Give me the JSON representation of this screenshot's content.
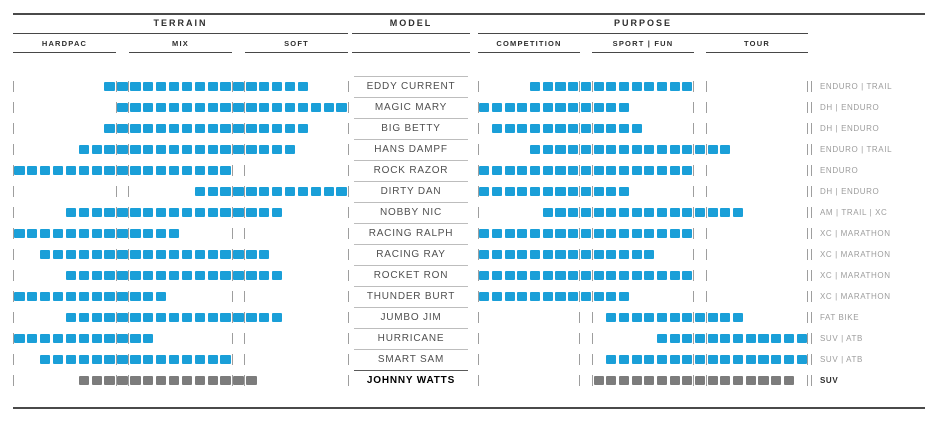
{
  "header": {
    "terrain": {
      "label": "TERRAIN",
      "sections": [
        "HARDPAC",
        "MIX",
        "SOFT"
      ]
    },
    "model": {
      "label": "MODEL"
    },
    "purpose": {
      "label": "PURPOSE",
      "sections": [
        "COMPETITION",
        "SPORT | FUN",
        "TOUR"
      ]
    }
  },
  "colors": {
    "bar_blue": "#1a9fd8",
    "bar_gray": "#7c7c7c",
    "tick_gray": "#9e9e9e"
  },
  "grid": {
    "slots_per_section": 8,
    "cell_note": "terrain_cells / purpose_cells are inclusive [start,end] on a 26-cell track: cells 0-7 section1, 8 gap, 9-16 section2, 17 gap, 18-25 section3"
  },
  "rows": [
    {
      "model": "EDDY CURRENT",
      "category": "ENDURO | TRAIL",
      "terrain_cells": [
        7,
        22
      ],
      "purpose_cells": [
        4,
        16
      ],
      "highlight": false
    },
    {
      "model": "MAGIC MARY",
      "category": "DH | ENDURO",
      "terrain_cells": [
        8,
        25
      ],
      "purpose_cells": [
        0,
        11
      ],
      "highlight": false
    },
    {
      "model": "BIG BETTY",
      "category": "DH | ENDURO",
      "terrain_cells": [
        7,
        22
      ],
      "purpose_cells": [
        1,
        12
      ],
      "highlight": false
    },
    {
      "model": "HANS DAMPF",
      "category": "ENDURO | TRAIL",
      "terrain_cells": [
        5,
        21
      ],
      "purpose_cells": [
        4,
        19
      ],
      "highlight": false
    },
    {
      "model": "ROCK RAZOR",
      "category": "ENDURO",
      "terrain_cells": [
        0,
        16
      ],
      "purpose_cells": [
        0,
        16
      ],
      "highlight": false
    },
    {
      "model": "DIRTY DAN",
      "category": "DH | ENDURO",
      "terrain_cells": [
        14,
        25
      ],
      "purpose_cells": [
        0,
        11
      ],
      "highlight": false
    },
    {
      "model": "NOBBY NIC",
      "category": "AM | TRAIL | XC",
      "terrain_cells": [
        4,
        20
      ],
      "purpose_cells": [
        5,
        20
      ],
      "highlight": false
    },
    {
      "model": "RACING RALPH",
      "category": "XC | MARATHON",
      "terrain_cells": [
        0,
        12
      ],
      "purpose_cells": [
        0,
        16
      ],
      "highlight": false
    },
    {
      "model": "RACING RAY",
      "category": "XC | MARATHON",
      "terrain_cells": [
        2,
        19
      ],
      "purpose_cells": [
        0,
        13
      ],
      "highlight": false
    },
    {
      "model": "ROCKET RON",
      "category": "XC | MARATHON",
      "terrain_cells": [
        4,
        20
      ],
      "purpose_cells": [
        0,
        16
      ],
      "highlight": false
    },
    {
      "model": "THUNDER BURT",
      "category": "XC | MARATHON",
      "terrain_cells": [
        0,
        11
      ],
      "purpose_cells": [
        0,
        11
      ],
      "highlight": false
    },
    {
      "model": "JUMBO JIM",
      "category": "FAT BIKE",
      "terrain_cells": [
        4,
        20
      ],
      "purpose_cells": [
        10,
        20
      ],
      "highlight": false
    },
    {
      "model": "HURRICANE",
      "category": "SUV | ATB",
      "terrain_cells": [
        0,
        10
      ],
      "purpose_cells": [
        14,
        25
      ],
      "highlight": false
    },
    {
      "model": "SMART SAM",
      "category": "SUV | ATB",
      "terrain_cells": [
        2,
        16
      ],
      "purpose_cells": [
        10,
        25
      ],
      "highlight": false
    },
    {
      "model": "JOHNNY WATTS",
      "category": "SUV",
      "terrain_cells": [
        5,
        18
      ],
      "purpose_cells": [
        9,
        24
      ],
      "highlight": true
    }
  ],
  "chart_data": {
    "type": "table",
    "title": "Tire model line-up: terrain suitability and purpose",
    "sections": {
      "terrain": [
        "HARDPAC",
        "MIX",
        "SOFT"
      ],
      "purpose": [
        "COMPETITION",
        "SPORT | FUN",
        "TOUR"
      ]
    },
    "slots_per_section": 8,
    "scale_note": "ranges are inclusive slot positions 1-24 across three consecutive 8-slot sections",
    "rows": [
      {
        "model": "EDDY CURRENT",
        "terrain_range": [
          8,
          21
        ],
        "purpose_range": [
          5,
          16
        ],
        "category": "ENDURO | TRAIL"
      },
      {
        "model": "MAGIC MARY",
        "terrain_range": [
          9,
          24
        ],
        "purpose_range": [
          1,
          11
        ],
        "category": "DH | ENDURO"
      },
      {
        "model": "BIG BETTY",
        "terrain_range": [
          8,
          21
        ],
        "purpose_range": [
          2,
          12
        ],
        "category": "DH | ENDURO"
      },
      {
        "model": "HANS DAMPF",
        "terrain_range": [
          6,
          20
        ],
        "purpose_range": [
          5,
          18
        ],
        "category": "ENDURO | TRAIL"
      },
      {
        "model": "ROCK RAZOR",
        "terrain_range": [
          1,
          16
        ],
        "purpose_range": [
          1,
          16
        ],
        "category": "ENDURO"
      },
      {
        "model": "DIRTY DAN",
        "terrain_range": [
          14,
          24
        ],
        "purpose_range": [
          1,
          11
        ],
        "category": "DH | ENDURO"
      },
      {
        "model": "NOBBY NIC",
        "terrain_range": [
          5,
          19
        ],
        "purpose_range": [
          6,
          19
        ],
        "category": "AM | TRAIL | XC"
      },
      {
        "model": "RACING RALPH",
        "terrain_range": [
          1,
          12
        ],
        "purpose_range": [
          1,
          16
        ],
        "category": "XC | MARATHON"
      },
      {
        "model": "RACING RAY",
        "terrain_range": [
          3,
          18
        ],
        "purpose_range": [
          1,
          13
        ],
        "category": "XC | MARATHON"
      },
      {
        "model": "ROCKET RON",
        "terrain_range": [
          5,
          19
        ],
        "purpose_range": [
          1,
          16
        ],
        "category": "XC | MARATHON"
      },
      {
        "model": "THUNDER BURT",
        "terrain_range": [
          1,
          11
        ],
        "purpose_range": [
          1,
          11
        ],
        "category": "XC | MARATHON"
      },
      {
        "model": "JUMBO JIM",
        "terrain_range": [
          5,
          19
        ],
        "purpose_range": [
          10,
          19
        ],
        "category": "FAT BIKE"
      },
      {
        "model": "HURRICANE",
        "terrain_range": [
          1,
          10
        ],
        "purpose_range": [
          14,
          24
        ],
        "category": "SUV | ATB"
      },
      {
        "model": "SMART SAM",
        "terrain_range": [
          3,
          16
        ],
        "purpose_range": [
          10,
          24
        ],
        "category": "SUV | ATB"
      },
      {
        "model": "JOHNNY WATTS",
        "terrain_range": [
          6,
          17
        ],
        "purpose_range": [
          9,
          23
        ],
        "category": "SUV"
      }
    ]
  }
}
